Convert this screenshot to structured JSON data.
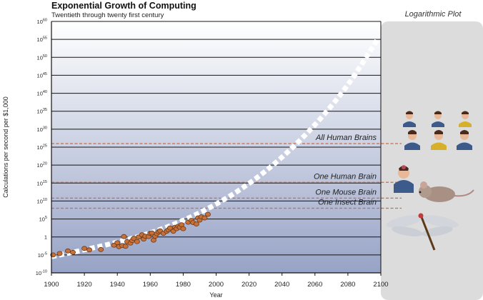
{
  "header": {
    "title": "Exponential Growth of Computing",
    "subtitle": "Twentieth through twenty first century",
    "panel_title": "Logarithmic Plot"
  },
  "chart_data": {
    "type": "scatter",
    "title": "Exponential Growth of Computing",
    "subtitle": "Twentieth through twenty first century",
    "xlabel": "Year",
    "ylabel": "Calculations per second per $1,000",
    "xlim": [
      1900,
      2100
    ],
    "ylim_exponent": [
      -10,
      60
    ],
    "y_scale": "log",
    "x_ticks": [
      1900,
      1920,
      1940,
      1960,
      1980,
      2000,
      2020,
      2040,
      2060,
      2080,
      2100
    ],
    "y_ticks": [
      {
        "exp": -10,
        "base": "10",
        "sup": "-10"
      },
      {
        "exp": -5,
        "base": "10",
        "sup": "-5"
      },
      {
        "exp": 0,
        "base": "1",
        "sup": ""
      },
      {
        "exp": 5,
        "base": "10",
        "sup": "5"
      },
      {
        "exp": 10,
        "base": "10",
        "sup": "10"
      },
      {
        "exp": 15,
        "base": "10",
        "sup": "15"
      },
      {
        "exp": 20,
        "base": "10",
        "sup": "20"
      },
      {
        "exp": 25,
        "base": "10",
        "sup": "25"
      },
      {
        "exp": 30,
        "base": "10",
        "sup": "30"
      },
      {
        "exp": 35,
        "base": "10",
        "sup": "35"
      },
      {
        "exp": 40,
        "base": "10",
        "sup": "40"
      },
      {
        "exp": 45,
        "base": "10",
        "sup": "45"
      },
      {
        "exp": 50,
        "base": "10",
        "sup": "50"
      },
      {
        "exp": 55,
        "base": "10",
        "sup": "55"
      },
      {
        "exp": 60,
        "base": "10",
        "sup": "60"
      }
    ],
    "grid": true,
    "thresholds": [
      {
        "label": "All Human Brains",
        "exp": 26
      },
      {
        "label": "One Human Brain",
        "exp": 15.2
      },
      {
        "label": "One Mouse Brain",
        "exp": 10.8
      },
      {
        "label": "One Insect Brain",
        "exp": 8.0
      }
    ],
    "data_points": [
      {
        "x": 1901,
        "exp": -5.0
      },
      {
        "x": 1905,
        "exp": -4.6
      },
      {
        "x": 1910,
        "exp": -3.9
      },
      {
        "x": 1913,
        "exp": -4.3
      },
      {
        "x": 1920,
        "exp": -3.2
      },
      {
        "x": 1923,
        "exp": -3.6
      },
      {
        "x": 1930,
        "exp": -3.5
      },
      {
        "x": 1938,
        "exp": -2.3
      },
      {
        "x": 1940,
        "exp": -1.6
      },
      {
        "x": 1941,
        "exp": -2.7
      },
      {
        "x": 1943,
        "exp": -2.4
      },
      {
        "x": 1944,
        "exp": 0.1
      },
      {
        "x": 1945,
        "exp": -2.6
      },
      {
        "x": 1946,
        "exp": -1.3
      },
      {
        "x": 1948,
        "exp": -1.7
      },
      {
        "x": 1949,
        "exp": -1.0
      },
      {
        "x": 1950,
        "exp": -0.4
      },
      {
        "x": 1952,
        "exp": -1.3
      },
      {
        "x": 1953,
        "exp": 0.0
      },
      {
        "x": 1955,
        "exp": 0.6
      },
      {
        "x": 1956,
        "exp": -0.6
      },
      {
        "x": 1957,
        "exp": 0.2
      },
      {
        "x": 1959,
        "exp": 0.1
      },
      {
        "x": 1960,
        "exp": 1.0
      },
      {
        "x": 1961,
        "exp": 1.1
      },
      {
        "x": 1962,
        "exp": -0.9
      },
      {
        "x": 1963,
        "exp": 0.2
      },
      {
        "x": 1964,
        "exp": 0.9
      },
      {
        "x": 1965,
        "exp": 1.4
      },
      {
        "x": 1966,
        "exp": 1.7
      },
      {
        "x": 1968,
        "exp": 1.0
      },
      {
        "x": 1970,
        "exp": 1.6
      },
      {
        "x": 1971,
        "exp": 2.0
      },
      {
        "x": 1972,
        "exp": 2.5
      },
      {
        "x": 1974,
        "exp": 1.6
      },
      {
        "x": 1975,
        "exp": 2.7
      },
      {
        "x": 1976,
        "exp": 2.3
      },
      {
        "x": 1977,
        "exp": 3.0
      },
      {
        "x": 1978,
        "exp": 2.7
      },
      {
        "x": 1979,
        "exp": 3.4
      },
      {
        "x": 1980,
        "exp": 2.3
      },
      {
        "x": 1983,
        "exp": 4.1
      },
      {
        "x": 1985,
        "exp": 4.6
      },
      {
        "x": 1986,
        "exp": 4.0
      },
      {
        "x": 1988,
        "exp": 3.6
      },
      {
        "x": 1989,
        "exp": 5.3
      },
      {
        "x": 1990,
        "exp": 4.7
      },
      {
        "x": 1991,
        "exp": 5.6
      },
      {
        "x": 1993,
        "exp": 5.3
      },
      {
        "x": 1995,
        "exp": 6.3
      }
    ],
    "trend": {
      "name": "projection",
      "points": [
        {
          "x": 1900,
          "exp": -5.5
        },
        {
          "x": 1920,
          "exp": -3.6
        },
        {
          "x": 1940,
          "exp": -1.5
        },
        {
          "x": 1960,
          "exp": 1.0
        },
        {
          "x": 1980,
          "exp": 4.5
        },
        {
          "x": 2000,
          "exp": 9.0
        },
        {
          "x": 2020,
          "exp": 14.7
        },
        {
          "x": 2040,
          "exp": 22.0
        },
        {
          "x": 2060,
          "exp": 31.0
        },
        {
          "x": 2080,
          "exp": 42.0
        },
        {
          "x": 2098,
          "exp": 55.0
        }
      ]
    },
    "colors": {
      "background_top": "#ffffff",
      "background_bottom": "#97a3c6",
      "grid": "#151515",
      "points": "#c8703a",
      "point_stroke": "#6a3a18",
      "trend": "#ffffff",
      "threshold_line": "#d06a44",
      "panel": "#dcdcdc"
    }
  }
}
